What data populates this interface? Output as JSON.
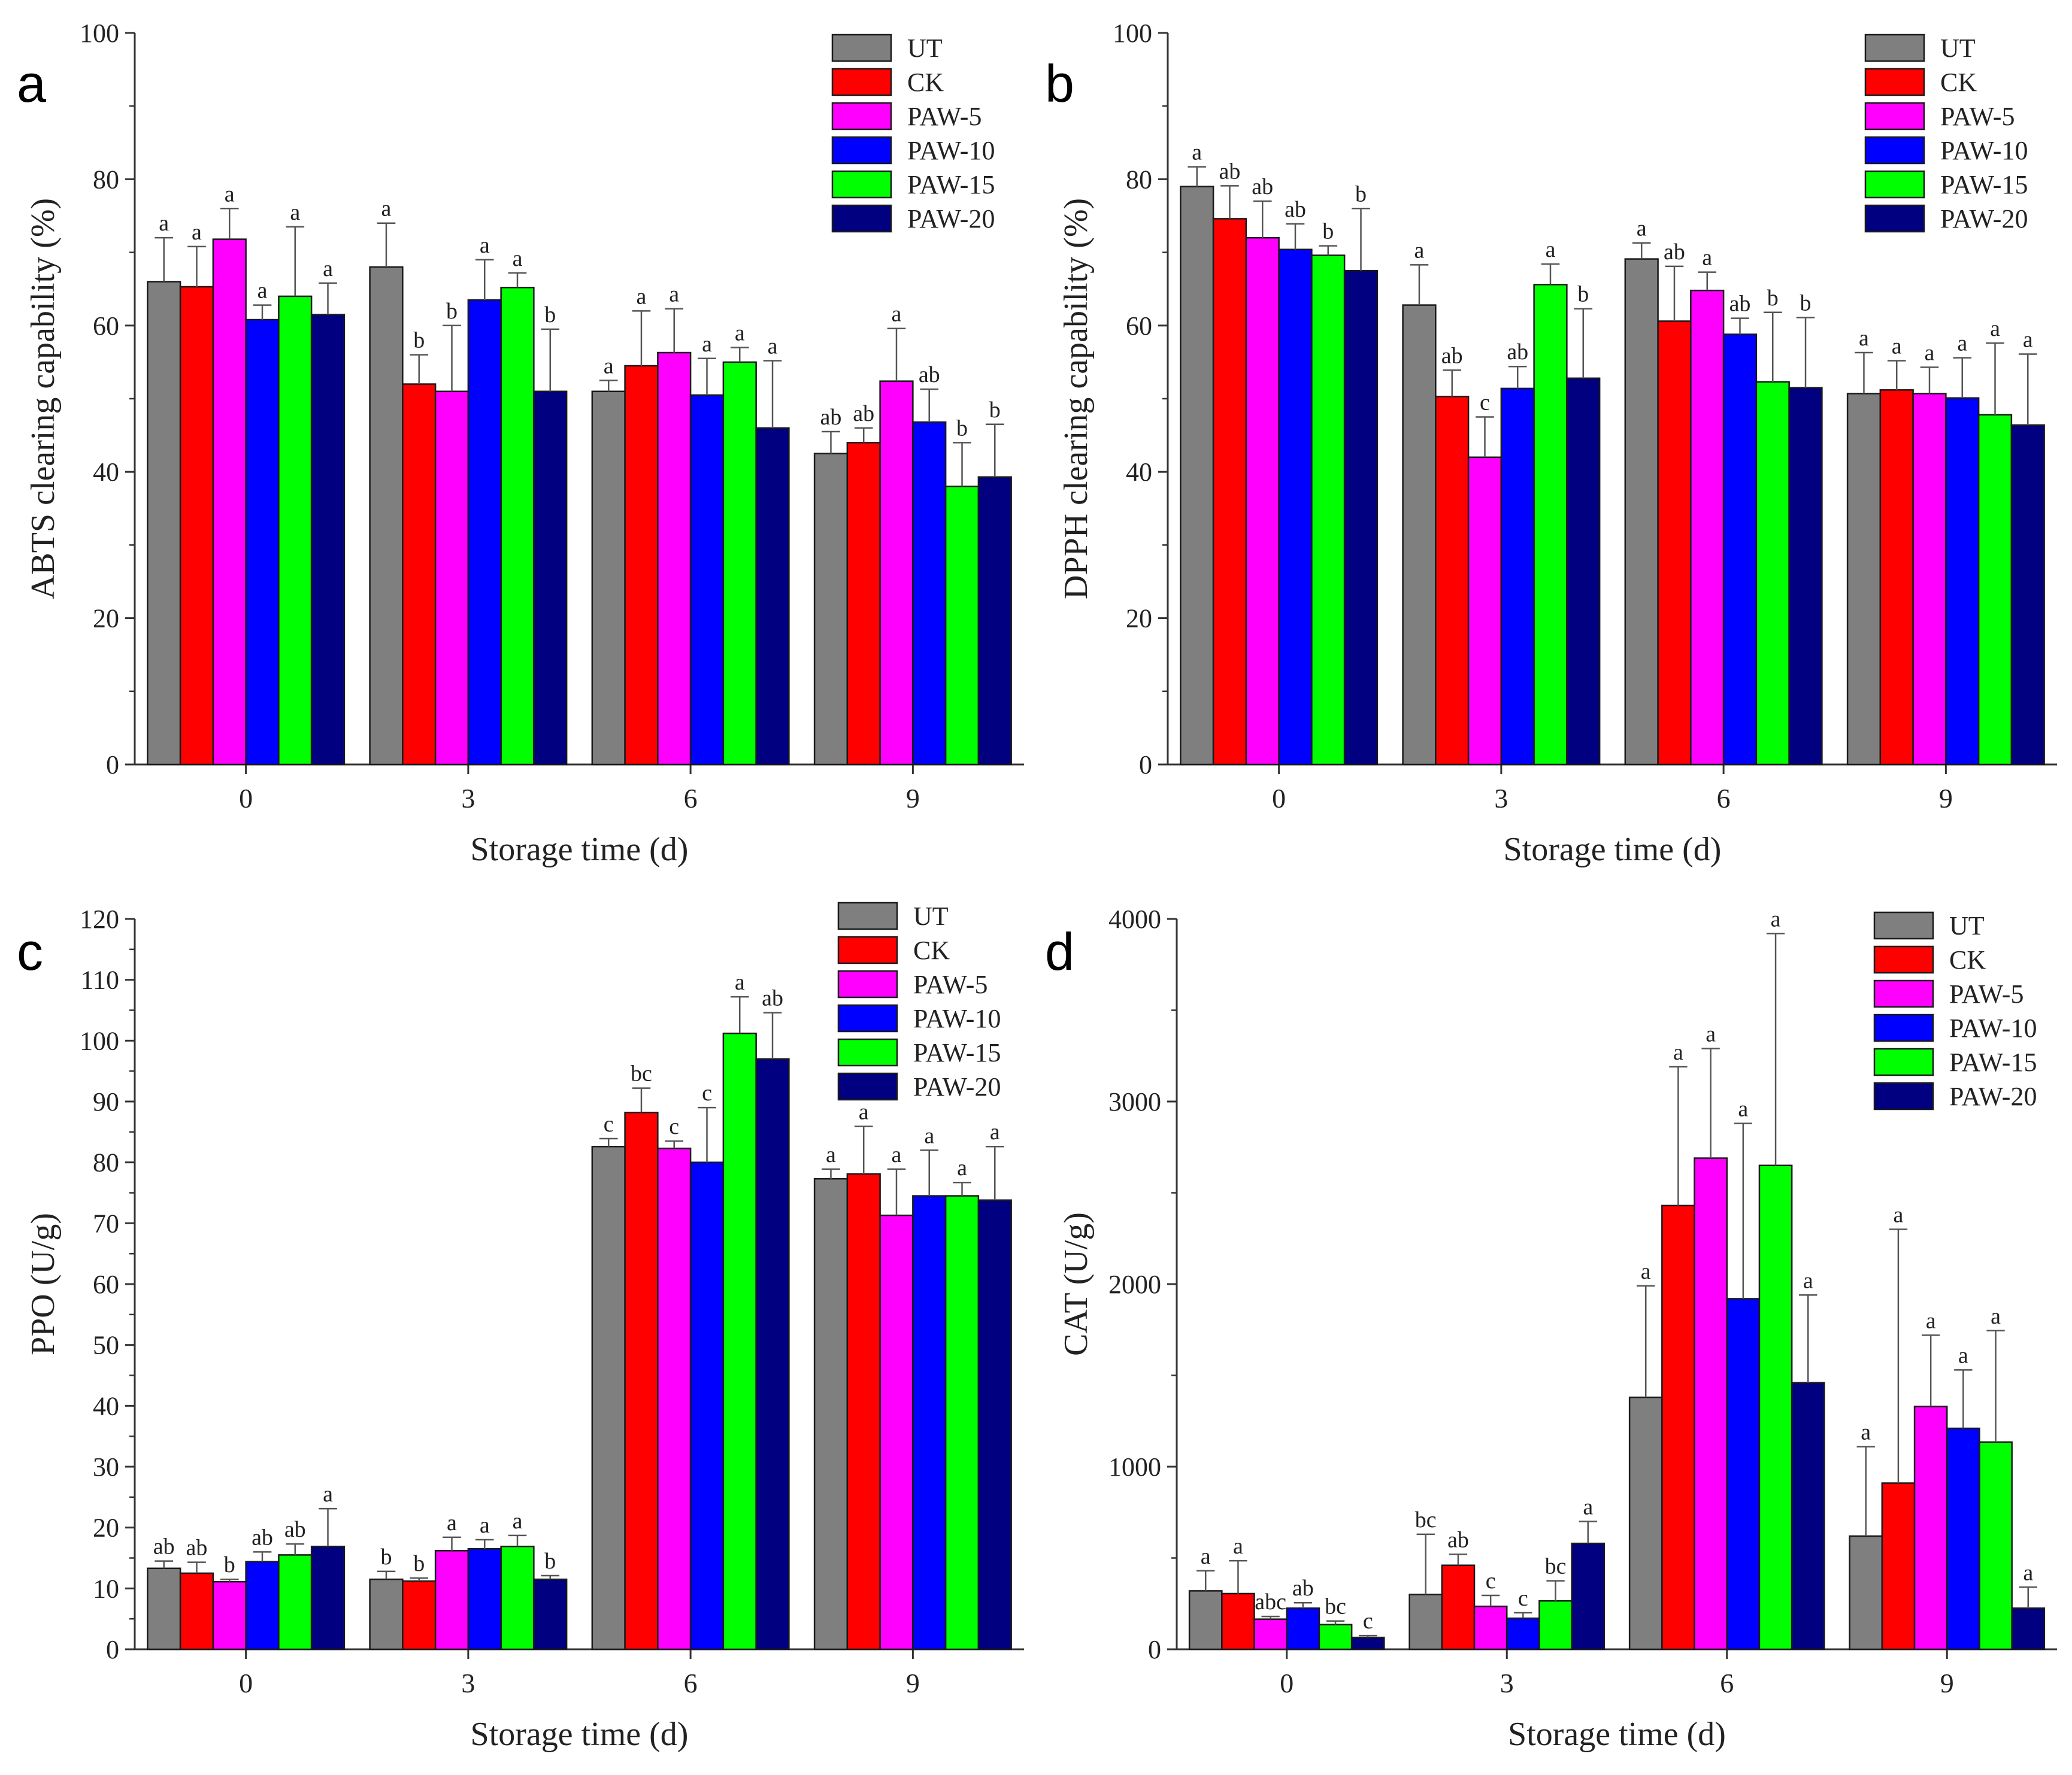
{
  "chart_data": [
    {
      "panel": "a",
      "type": "bar",
      "xlabel": "Storage time (d)",
      "ylabel": "ABTS clearing capability (%)",
      "categories": [
        "0",
        "3",
        "6",
        "9"
      ],
      "ylim": [
        0,
        100
      ],
      "yticks": [
        0,
        20,
        40,
        60,
        80,
        100
      ],
      "legend_position": "top-right",
      "series": [
        {
          "name": "UT",
          "color": "#7f7f7f",
          "values": [
            66,
            68,
            51,
            42.5
          ],
          "errors": [
            6,
            6,
            1.5,
            3
          ],
          "letters": [
            "a",
            "a",
            "a",
            "ab"
          ]
        },
        {
          "name": "CK",
          "color": "#ff0000",
          "values": [
            65.3,
            52,
            54.5,
            44
          ],
          "errors": [
            5.5,
            4,
            7.5,
            2
          ],
          "letters": [
            "a",
            "b",
            "a",
            "ab"
          ]
        },
        {
          "name": "PAW-5",
          "color": "#ff00ff",
          "values": [
            71.8,
            51,
            56.3,
            52.4
          ],
          "errors": [
            4.2,
            9,
            6,
            7.2
          ],
          "letters": [
            "a",
            "b",
            "a",
            "a"
          ]
        },
        {
          "name": "PAW-10",
          "color": "#0000ff",
          "values": [
            60.8,
            63.5,
            50.5,
            46.8
          ],
          "errors": [
            2,
            5.5,
            5,
            4.5
          ],
          "letters": [
            "a",
            "a",
            "a",
            "ab"
          ]
        },
        {
          "name": "PAW-15",
          "color": "#00ff00",
          "values": [
            64,
            65.2,
            55,
            38
          ],
          "errors": [
            9.5,
            2,
            2,
            6
          ],
          "letters": [
            "a",
            "a",
            "a",
            "b"
          ]
        },
        {
          "name": "PAW-20",
          "color": "#000080",
          "values": [
            61.5,
            51,
            46,
            39.3
          ],
          "errors": [
            4.3,
            8.5,
            9.2,
            7.2
          ],
          "letters": [
            "a",
            "b",
            "a",
            "b"
          ]
        }
      ]
    },
    {
      "panel": "b",
      "type": "bar",
      "xlabel": "Storage time (d)",
      "ylabel": "DPPH clearing capability (%)",
      "categories": [
        "0",
        "3",
        "6",
        "9"
      ],
      "ylim": [
        0,
        100
      ],
      "yticks": [
        0,
        20,
        40,
        60,
        80,
        100
      ],
      "legend_position": "top-right",
      "series": [
        {
          "name": "UT",
          "color": "#7f7f7f",
          "values": [
            79,
            62.8,
            69.1,
            50.7
          ],
          "errors": [
            2.7,
            5.5,
            2.2,
            5.6
          ],
          "letters": [
            "a",
            "a",
            "a",
            "a"
          ]
        },
        {
          "name": "CK",
          "color": "#ff0000",
          "values": [
            74.6,
            50.3,
            60.6,
            51.2
          ],
          "errors": [
            4.5,
            3.6,
            7.5,
            4
          ],
          "letters": [
            "ab",
            "ab",
            "ab",
            "a"
          ]
        },
        {
          "name": "PAW-5",
          "color": "#ff00ff",
          "values": [
            72,
            42,
            64.8,
            50.7
          ],
          "errors": [
            5,
            5.5,
            2.5,
            3.6
          ],
          "letters": [
            "ab",
            "c",
            "a",
            "a"
          ]
        },
        {
          "name": "PAW-10",
          "color": "#0000ff",
          "values": [
            70.4,
            51.4,
            58.8,
            50.1
          ],
          "errors": [
            3.5,
            3,
            2.2,
            5.5
          ],
          "letters": [
            "ab",
            "ab",
            "ab",
            "a"
          ]
        },
        {
          "name": "PAW-15",
          "color": "#00ff00",
          "values": [
            69.6,
            65.6,
            52.3,
            47.8
          ],
          "errors": [
            1.3,
            2.8,
            9.5,
            9.8
          ],
          "letters": [
            "b",
            "a",
            "b",
            "a"
          ]
        },
        {
          "name": "PAW-20",
          "color": "#000080",
          "values": [
            67.5,
            52.8,
            51.5,
            46.4
          ],
          "errors": [
            8.5,
            9.5,
            9.6,
            9.7
          ],
          "letters": [
            "b",
            "b",
            "b",
            "a"
          ]
        }
      ]
    },
    {
      "panel": "c",
      "type": "bar",
      "xlabel": "Storage time (d)",
      "ylabel": "PPO (U/g)",
      "categories": [
        "0",
        "3",
        "6",
        "9"
      ],
      "ylim": [
        0,
        120
      ],
      "yticks": [
        0,
        10,
        20,
        30,
        40,
        50,
        60,
        70,
        80,
        90,
        100,
        110,
        120
      ],
      "legend_position": "top-right",
      "series": [
        {
          "name": "UT",
          "color": "#7f7f7f",
          "values": [
            13.3,
            11.5,
            82.6,
            77.3
          ],
          "errors": [
            1.2,
            1.3,
            1.3,
            1.6
          ],
          "letters": [
            "ab",
            "b",
            "c",
            "a"
          ]
        },
        {
          "name": "CK",
          "color": "#ff0000",
          "values": [
            12.5,
            11.2,
            88.2,
            78.1
          ],
          "errors": [
            1.8,
            0.5,
            4,
            7.8
          ],
          "letters": [
            "ab",
            "b",
            "bc",
            "a"
          ]
        },
        {
          "name": "PAW-5",
          "color": "#ff00ff",
          "values": [
            11.1,
            16.2,
            82.3,
            71.3
          ],
          "errors": [
            0.4,
            2.2,
            1.2,
            7.6
          ],
          "letters": [
            "b",
            "a",
            "c",
            "a"
          ]
        },
        {
          "name": "PAW-10",
          "color": "#0000ff",
          "values": [
            14.4,
            16.5,
            80,
            74.5
          ],
          "errors": [
            1.6,
            1.5,
            9,
            7.5
          ],
          "letters": [
            "ab",
            "a",
            "c",
            "a"
          ]
        },
        {
          "name": "PAW-15",
          "color": "#00ff00",
          "values": [
            15.5,
            16.9,
            101.2,
            74.5
          ],
          "errors": [
            1.8,
            1.8,
            6,
            2.2
          ],
          "letters": [
            "ab",
            "a",
            "a",
            "a"
          ]
        },
        {
          "name": "PAW-20",
          "color": "#000080",
          "values": [
            16.9,
            11.5,
            97,
            73.8
          ],
          "errors": [
            6.2,
            0.6,
            7.6,
            8.8
          ],
          "letters": [
            "a",
            "b",
            "ab",
            "a"
          ]
        }
      ]
    },
    {
      "panel": "d",
      "type": "bar",
      "xlabel": "Storage time (d)",
      "ylabel": "CAT (U/g)",
      "categories": [
        "0",
        "3",
        "6",
        "9"
      ],
      "ylim": [
        0,
        4000
      ],
      "yticks": [
        0,
        1000,
        2000,
        3000,
        4000
      ],
      "legend_position": "top-right",
      "series": [
        {
          "name": "UT",
          "color": "#7f7f7f",
          "values": [
            320,
            300,
            1380,
            620
          ],
          "errors": [
            110,
            330,
            610,
            490
          ],
          "letters": [
            "a",
            "bc",
            "a",
            "a"
          ]
        },
        {
          "name": "CK",
          "color": "#ff0000",
          "values": [
            305,
            460,
            2430,
            910
          ],
          "errors": [
            180,
            60,
            760,
            1390
          ],
          "letters": [
            "a",
            "ab",
            "a",
            "a"
          ]
        },
        {
          "name": "PAW-5",
          "color": "#ff00ff",
          "values": [
            165,
            235,
            2690,
            1330
          ],
          "errors": [
            15,
            60,
            600,
            390
          ],
          "letters": [
            "abc",
            "c",
            "a",
            "a"
          ]
        },
        {
          "name": "PAW-10",
          "color": "#0000ff",
          "values": [
            225,
            170,
            1920,
            1210
          ],
          "errors": [
            30,
            30,
            960,
            320
          ],
          "letters": [
            "ab",
            "c",
            "a",
            "a"
          ]
        },
        {
          "name": "PAW-15",
          "color": "#00ff00",
          "values": [
            135,
            265,
            2650,
            1135
          ],
          "errors": [
            20,
            110,
            1270,
            610
          ],
          "letters": [
            "bc",
            "bc",
            "a",
            "a"
          ]
        },
        {
          "name": "PAW-20",
          "color": "#000080",
          "values": [
            65,
            580,
            1460,
            225
          ],
          "errors": [
            10,
            120,
            480,
            115
          ],
          "letters": [
            "c",
            "a",
            "a",
            "a"
          ]
        }
      ]
    }
  ]
}
